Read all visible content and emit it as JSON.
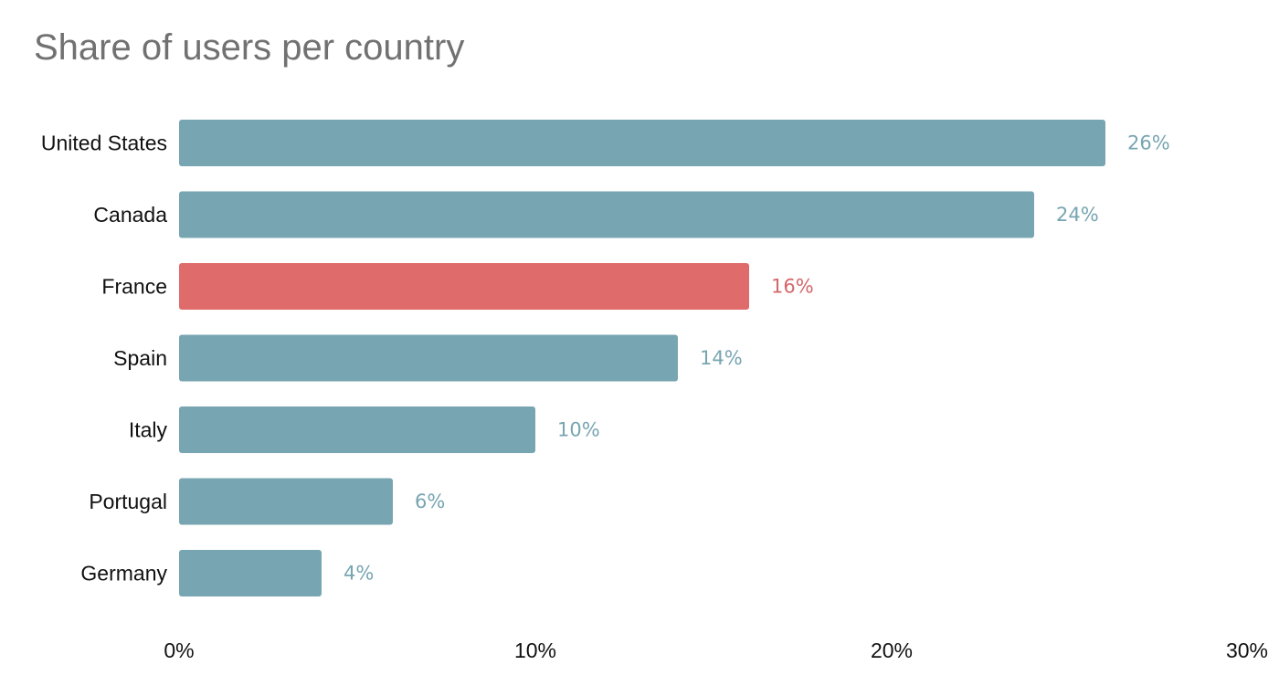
{
  "chart_data": {
    "type": "bar",
    "orientation": "horizontal",
    "title": "Share of users per country",
    "categories": [
      "United States",
      "Canada",
      "France",
      "Spain",
      "Italy",
      "Portugal",
      "Germany"
    ],
    "values": [
      26,
      24,
      16,
      14,
      10,
      6,
      4
    ],
    "value_labels": [
      "26%",
      "24%",
      "16%",
      "14%",
      "10%",
      "6%",
      "4%"
    ],
    "highlight_category": "France",
    "xlim": [
      0,
      30
    ],
    "xticks": [
      0,
      10,
      20,
      30
    ],
    "xtick_labels": [
      "0%",
      "10%",
      "20%",
      "30%"
    ],
    "xlabel": "",
    "ylabel": "",
    "grid": false,
    "legend": "none",
    "colors": {
      "bar": "#77a5b1",
      "highlight": "#e06b6b",
      "value_label": "#77a5b1",
      "highlight_label": "#d4676a",
      "title": "#717171",
      "text": "#111111"
    }
  }
}
